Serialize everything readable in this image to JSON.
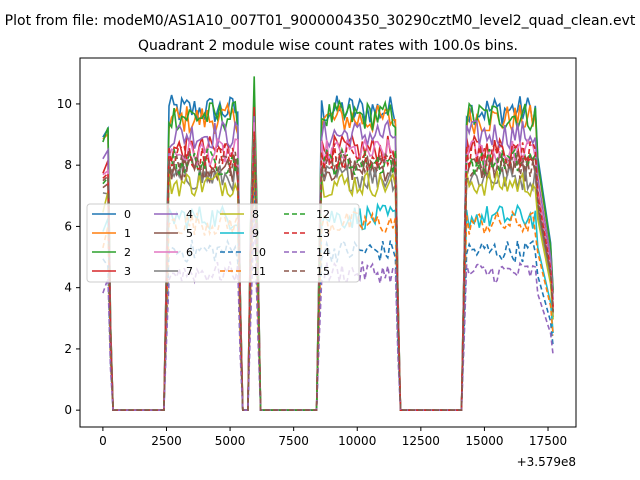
{
  "chart_data": {
    "type": "line",
    "suptitle": "Plot from file: modeM0/AS1A10_007T01_9000004350_30290cztM0_level2_quad_clean.evt",
    "title": "Quadrant 2 module wise count rates with 100.0s bins.",
    "xlabel": "",
    "ylabel": "",
    "offset_text": "+3.579e8",
    "xlim": [
      -900,
      18600
    ],
    "ylim": [
      -0.55,
      11.5
    ],
    "xticks": [
      0,
      2500,
      5000,
      7500,
      10000,
      12500,
      15000,
      17500
    ],
    "yticks": [
      0,
      2,
      4,
      6,
      8,
      10
    ],
    "legend": {
      "placement": "center-left",
      "ncol": 4
    },
    "segments": [
      [
        400,
        2400
      ],
      [
        5500,
        5700
      ],
      [
        6200,
        8400
      ],
      [
        11700,
        14100
      ]
    ],
    "windows": [
      [
        2500,
        5400
      ],
      [
        5800,
        6100
      ],
      [
        8500,
        11600
      ],
      [
        14200,
        17700
      ]
    ],
    "series": [
      {
        "name": "0",
        "color": "#1f77b4",
        "dash": false,
        "level": 9.8,
        "peak": 10.3,
        "noise": 0.25
      },
      {
        "name": "1",
        "color": "#ff7f0e",
        "dash": false,
        "level": 9.5,
        "peak": 10.1,
        "noise": 0.25
      },
      {
        "name": "2",
        "color": "#2ca02c",
        "dash": false,
        "level": 9.6,
        "peak": 10.9,
        "noise": 0.25
      },
      {
        "name": "3",
        "color": "#d62728",
        "dash": false,
        "level": 8.5,
        "peak": 9.9,
        "noise": 0.25
      },
      {
        "name": "4",
        "color": "#9467bd",
        "dash": false,
        "level": 9.0,
        "peak": 9.6,
        "noise": 0.25
      },
      {
        "name": "5",
        "color": "#8c564b",
        "dash": false,
        "level": 7.9,
        "peak": 9.2,
        "noise": 0.25
      },
      {
        "name": "6",
        "color": "#e377c2",
        "dash": false,
        "level": 8.4,
        "peak": 9.4,
        "noise": 0.25
      },
      {
        "name": "7",
        "color": "#7f7f7f",
        "dash": false,
        "level": 7.6,
        "peak": 8.9,
        "noise": 0.25
      },
      {
        "name": "8",
        "color": "#bcbd22",
        "dash": false,
        "level": 7.4,
        "peak": 8.7,
        "noise": 0.25
      },
      {
        "name": "9",
        "color": "#17becf",
        "dash": false,
        "level": 6.3,
        "peak": 8.0,
        "noise": 0.25
      },
      {
        "name": "10",
        "color": "#1f77b4",
        "dash": true,
        "level": 5.2,
        "peak": 7.8,
        "noise": 0.25
      },
      {
        "name": "11",
        "color": "#ff7f0e",
        "dash": true,
        "level": 6.1,
        "peak": 8.2,
        "noise": 0.25
      },
      {
        "name": "12",
        "color": "#2ca02c",
        "dash": true,
        "level": 8.1,
        "peak": 9.0,
        "noise": 0.25
      },
      {
        "name": "13",
        "color": "#d62728",
        "dash": true,
        "level": 8.3,
        "peak": 9.1,
        "noise": 0.25
      },
      {
        "name": "14",
        "color": "#9467bd",
        "dash": true,
        "level": 4.5,
        "peak": 6.5,
        "noise": 0.25
      },
      {
        "name": "15",
        "color": "#8c564b",
        "dash": true,
        "level": 8.0,
        "peak": 8.8,
        "noise": 0.25
      }
    ]
  }
}
